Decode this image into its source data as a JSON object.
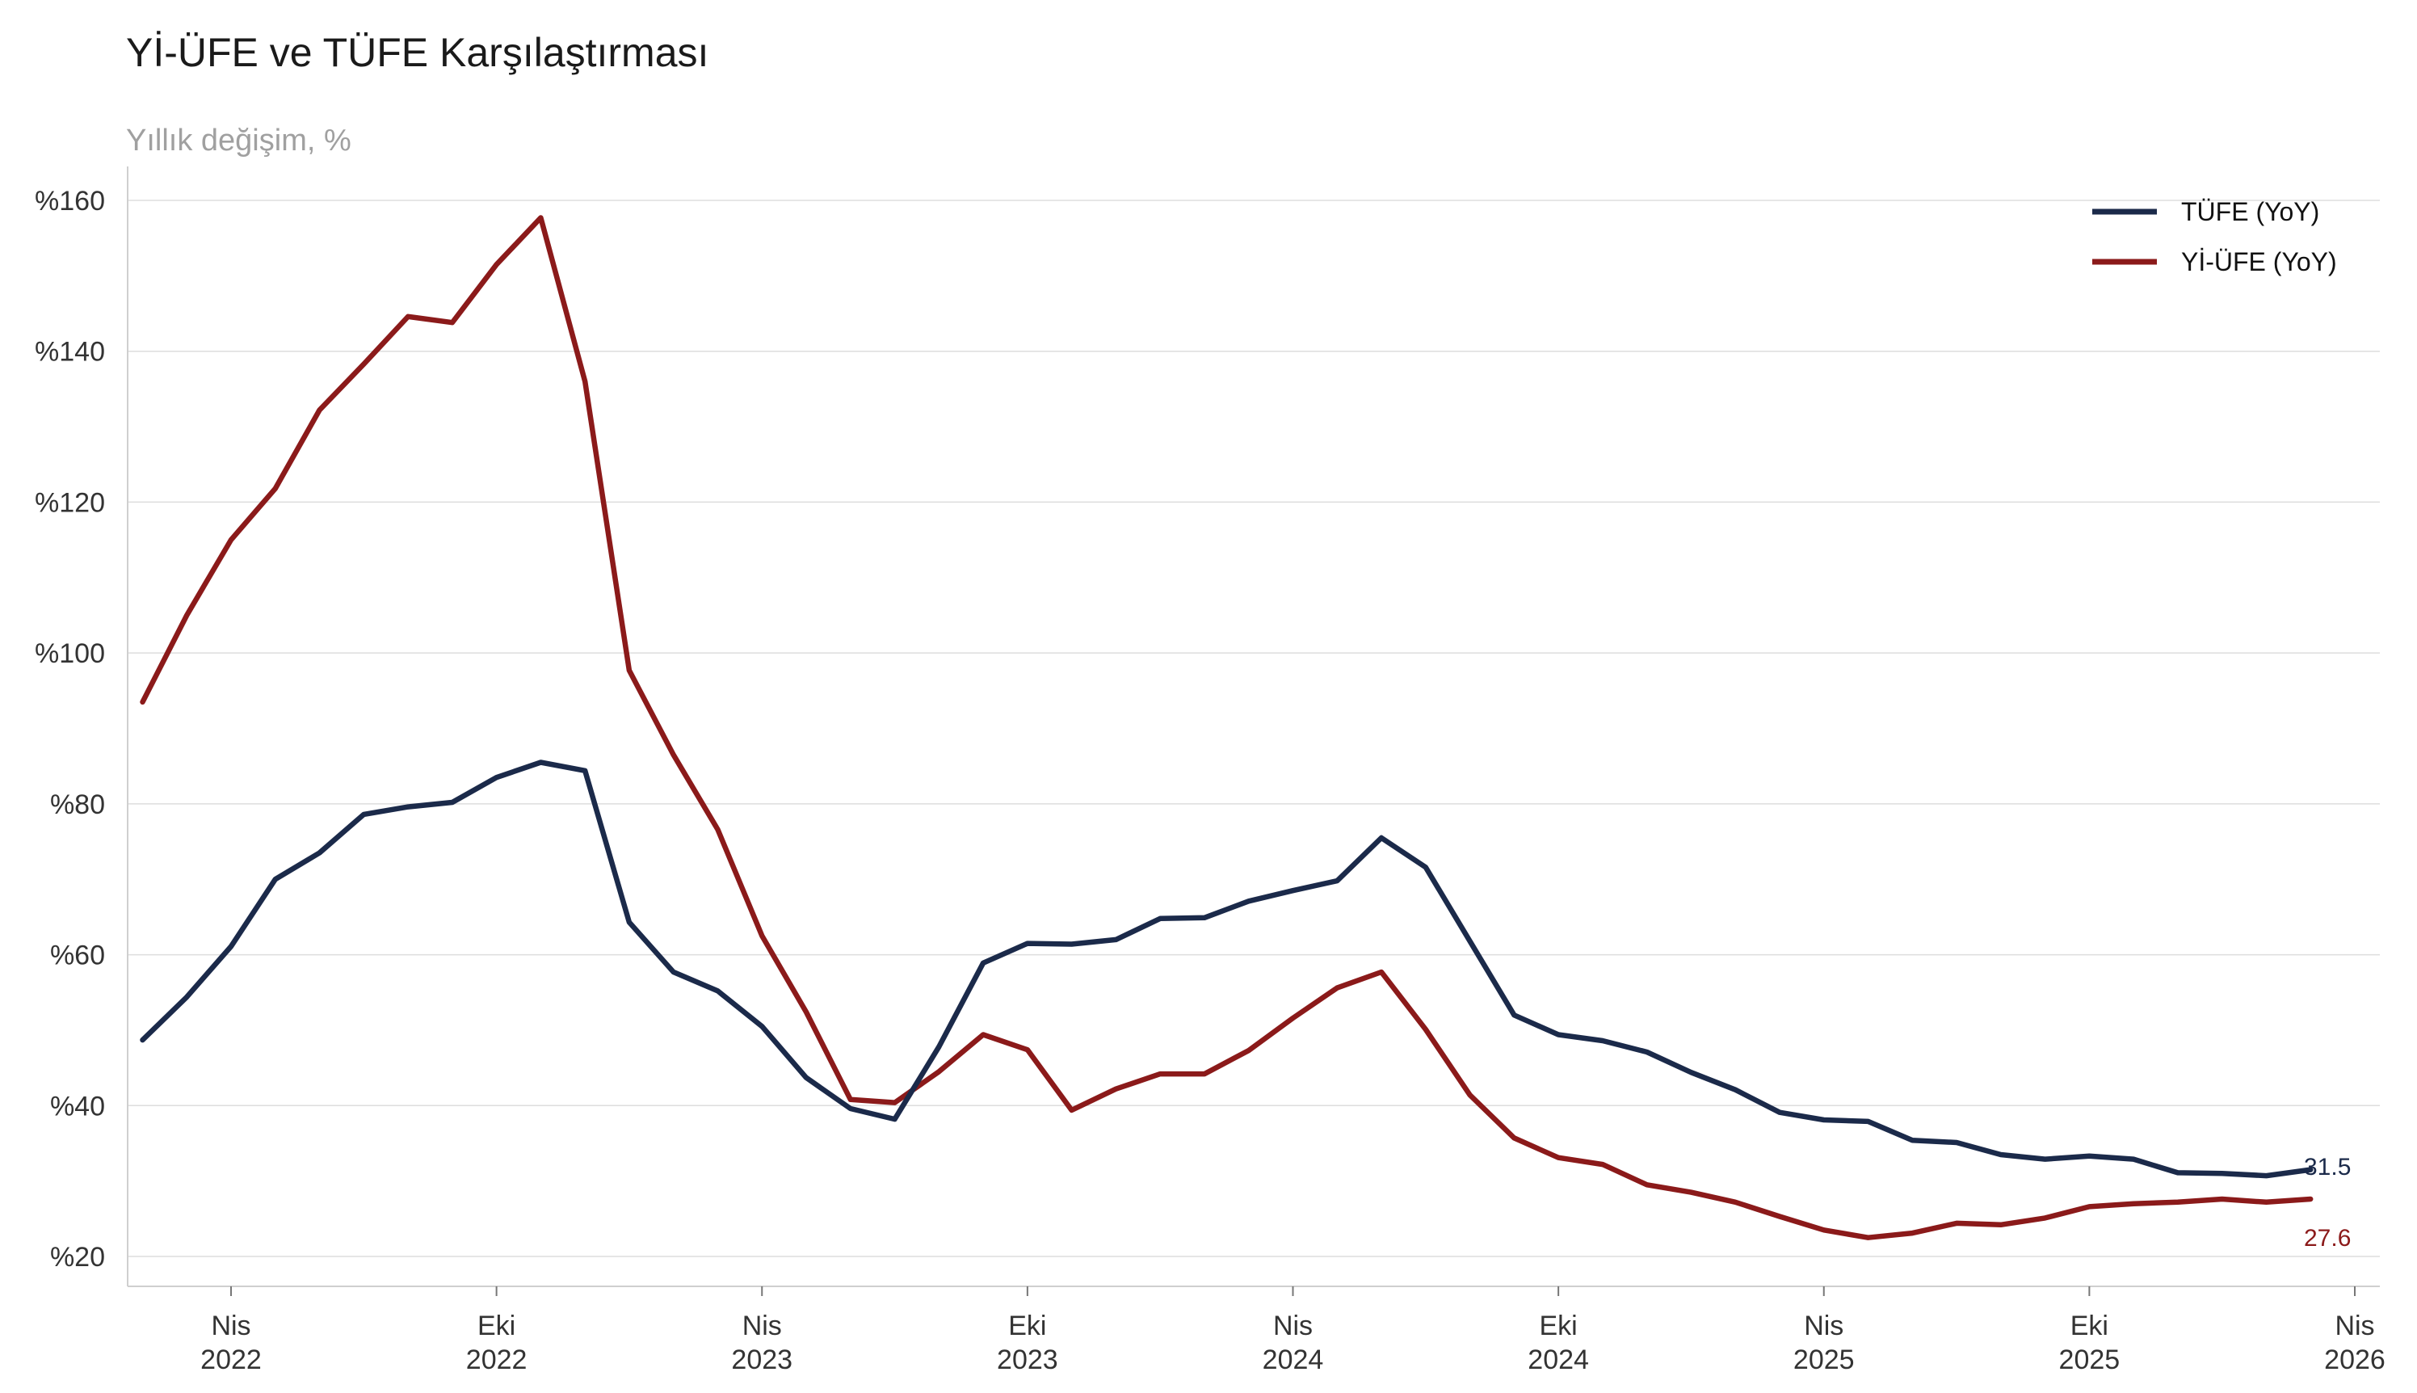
{
  "chart_data": {
    "type": "line",
    "title": "Yİ-ÜFE ve TÜFE Karşılaştırması",
    "subtitle": "Yıllık değişim, %",
    "xlabel": "",
    "ylabel": "",
    "ylim": [
      16,
      164
    ],
    "grid": true,
    "legend_position": "top-right",
    "x_start": "2022-01",
    "x_end": "2026-04",
    "y_ticks": [
      {
        "value": 20,
        "label": "%20"
      },
      {
        "value": 40,
        "label": "%40"
      },
      {
        "value": 60,
        "label": "%60"
      },
      {
        "value": 80,
        "label": "%80"
      },
      {
        "value": 100,
        "label": "%100"
      },
      {
        "value": 120,
        "label": "%120"
      },
      {
        "value": 140,
        "label": "%140"
      },
      {
        "value": 160,
        "label": "%160"
      }
    ],
    "x_ticks": [
      {
        "month": 3,
        "line1": "Nis",
        "line2": "2022"
      },
      {
        "month": 9,
        "line1": "Eki",
        "line2": "2022"
      },
      {
        "month": 15,
        "line1": "Nis",
        "line2": "2023"
      },
      {
        "month": 21,
        "line1": "Eki",
        "line2": "2023"
      },
      {
        "month": 27,
        "line1": "Nis",
        "line2": "2024"
      },
      {
        "month": 33,
        "line1": "Eki",
        "line2": "2024"
      },
      {
        "month": 39,
        "line1": "Nis",
        "line2": "2025"
      },
      {
        "month": 45,
        "line1": "Eki",
        "line2": "2025"
      },
      {
        "month": 51,
        "line1": "Nis",
        "line2": "2026"
      }
    ],
    "series": [
      {
        "name": "TÜFE (YoY)",
        "color": "#1b2a4a",
        "end_label": "31.5",
        "values": [
          48.7,
          54.4,
          61.1,
          70.0,
          73.5,
          78.6,
          79.6,
          80.2,
          83.5,
          85.5,
          84.4,
          64.3,
          57.7,
          55.2,
          50.5,
          43.7,
          39.6,
          38.2,
          47.8,
          58.9,
          61.5,
          61.4,
          62.0,
          64.8,
          64.9,
          67.1,
          68.5,
          69.8,
          75.5,
          71.6,
          61.8,
          52.0,
          49.4,
          48.6,
          47.1,
          44.4,
          42.1,
          39.1,
          38.1,
          37.9,
          35.4,
          35.1,
          33.5,
          32.9,
          33.3,
          32.9,
          31.1,
          31.0,
          30.7,
          31.5
        ]
      },
      {
        "name": "Yİ-ÜFE (YoY)",
        "color": "#8b1a1a",
        "end_label": "27.6",
        "values": [
          93.5,
          105.0,
          115.0,
          121.8,
          132.2,
          138.3,
          144.6,
          143.8,
          151.5,
          157.7,
          136.0,
          97.7,
          86.5,
          76.6,
          62.5,
          52.4,
          40.8,
          40.4,
          44.5,
          49.4,
          47.4,
          39.4,
          42.2,
          44.2,
          44.2,
          47.3,
          51.6,
          55.6,
          57.7,
          50.1,
          41.4,
          35.7,
          33.1,
          32.2,
          29.5,
          28.5,
          27.2,
          25.3,
          23.5,
          22.5,
          23.1,
          24.4,
          24.2,
          25.1,
          26.6,
          27.0,
          27.2,
          27.6,
          27.2,
          27.6
        ]
      }
    ]
  }
}
